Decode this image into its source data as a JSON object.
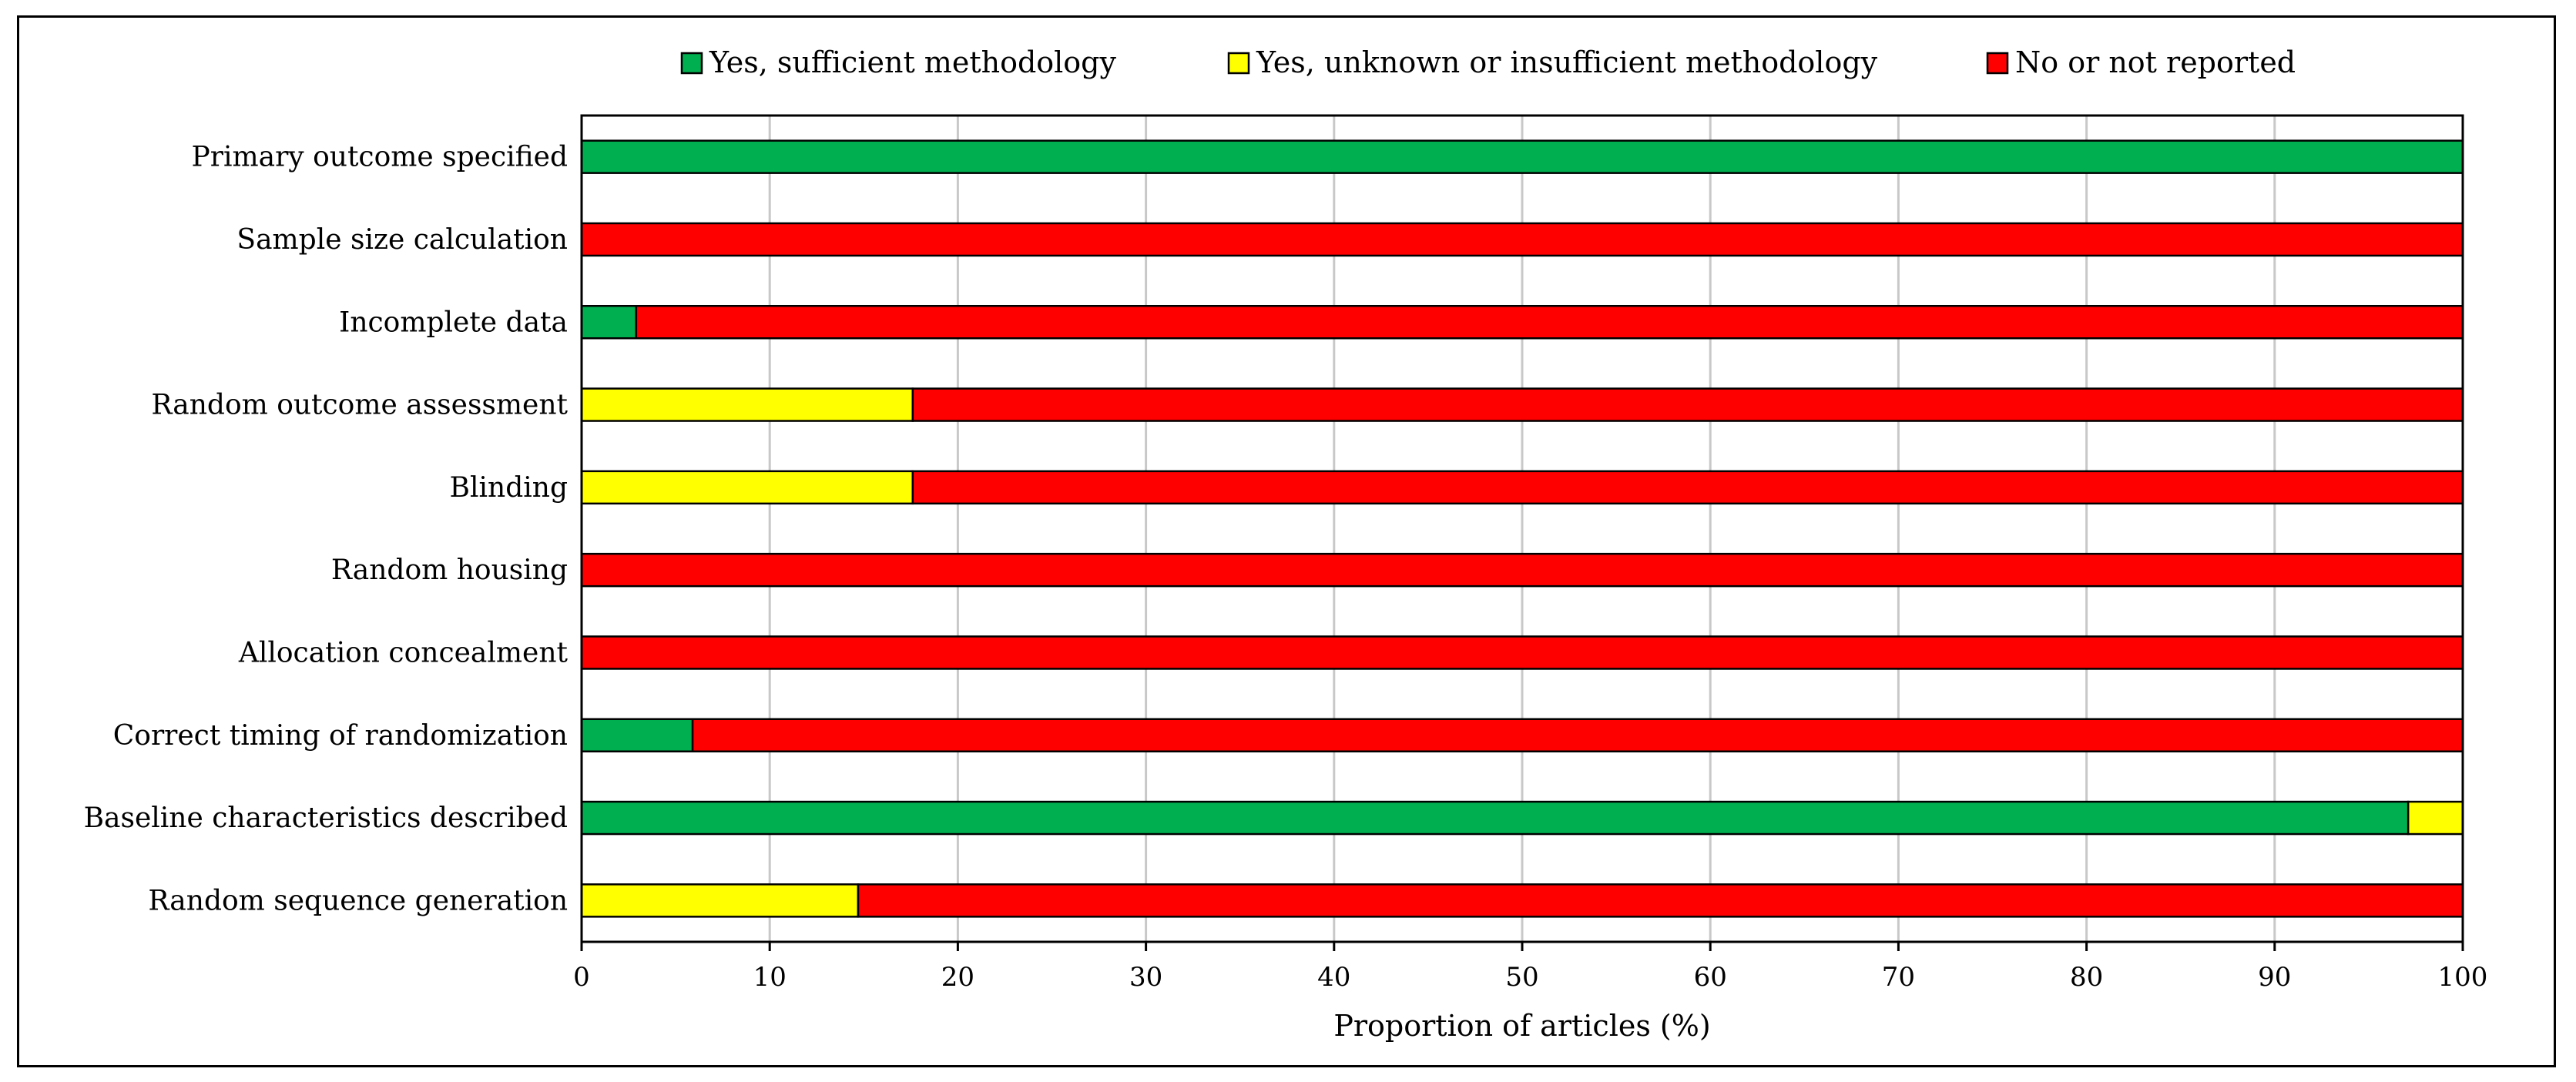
{
  "chart_data": {
    "type": "bar",
    "orientation": "horizontal",
    "stacked": true,
    "categories": [
      "Primary outcome specified",
      "Sample size calculation",
      "Incomplete data",
      "Random outcome assessment",
      "Blinding",
      "Random housing",
      "Allocation concealment",
      "Correct timing of randomization",
      "Baseline characteristics described",
      "Random sequence generation"
    ],
    "series": [
      {
        "name": "Yes, sufficient methodology",
        "color": "#00b050",
        "values": [
          100,
          0,
          2.9,
          0,
          0,
          0,
          0,
          5.9,
          97.1,
          0
        ]
      },
      {
        "name": "Yes, unknown or insufficient methodology",
        "color": "#ffff00",
        "values": [
          0,
          0,
          0,
          17.6,
          17.6,
          0,
          0,
          0,
          2.9,
          14.7
        ]
      },
      {
        "name": "No or not reported",
        "color": "#ff0000",
        "values": [
          0,
          100,
          97.1,
          82.4,
          82.4,
          100,
          100,
          94.1,
          0,
          85.3
        ]
      }
    ],
    "xlabel": "Proportion of articles (%)",
    "xlim": [
      0,
      100
    ],
    "xticks": [
      "0",
      "10",
      "20",
      "30",
      "40",
      "50",
      "60",
      "70",
      "80",
      "90",
      "100"
    ],
    "grid": "vertical",
    "legend": "top"
  }
}
